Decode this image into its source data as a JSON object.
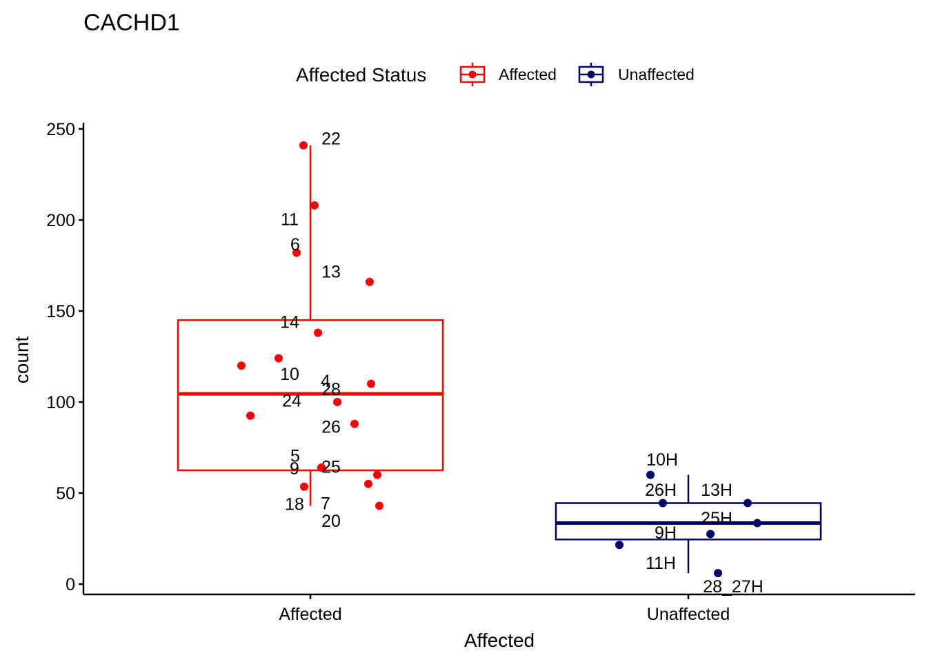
{
  "chart_data": {
    "type": "box",
    "title": "CACHD1",
    "xlabel": "Affected",
    "ylabel": "count",
    "ylim": [
      -4,
      254
    ],
    "yticks": [
      0,
      50,
      100,
      150,
      200,
      250
    ],
    "categories": [
      "Affected",
      "Unaffected"
    ],
    "legend": {
      "title": "Affected Status",
      "position": "top",
      "entries": [
        {
          "label": "Affected",
          "color": "#ff0000"
        },
        {
          "label": "Unaffected",
          "color": "#000066"
        }
      ]
    },
    "series": [
      {
        "name": "Affected",
        "color": "#ff0000",
        "box": {
          "lower_whisker": 43,
          "q1": 62.5,
          "median": 104.5,
          "q3": 145,
          "upper_whisker": 241
        },
        "points": [
          {
            "label": "22",
            "value": 241
          },
          {
            "label": "11",
            "value": 208
          },
          {
            "label": "6",
            "value": 182
          },
          {
            "label": "13",
            "value": 166
          },
          {
            "label": "14",
            "value": 138
          },
          {
            "label": "4",
            "value": 124
          },
          {
            "label": "10",
            "value": 120
          },
          {
            "label": "28",
            "value": 110
          },
          {
            "label": "24",
            "value": 100
          },
          {
            "label": "26",
            "value": 92.5
          },
          {
            "label": "5",
            "value": 88
          },
          {
            "label": "25",
            "value": 64
          },
          {
            "label": "9",
            "value": 60
          },
          {
            "label": "7",
            "value": 55
          },
          {
            "label": "18",
            "value": 53.5
          },
          {
            "label": "20",
            "value": 43
          }
        ]
      },
      {
        "name": "Unaffected",
        "color": "#000066",
        "box": {
          "lower_whisker": 6,
          "q1": 24.5,
          "median": 33.5,
          "q3": 44.5,
          "upper_whisker": 60
        },
        "points": [
          {
            "label": "10H",
            "value": 60
          },
          {
            "label": "26H",
            "value": 44.5
          },
          {
            "label": "13H",
            "value": 44.5
          },
          {
            "label": "25H",
            "value": 33.5
          },
          {
            "label": "9H",
            "value": 27.5
          },
          {
            "label": "11H",
            "value": 21.5
          },
          {
            "label": "28_27H",
            "value": 6
          }
        ]
      }
    ]
  }
}
